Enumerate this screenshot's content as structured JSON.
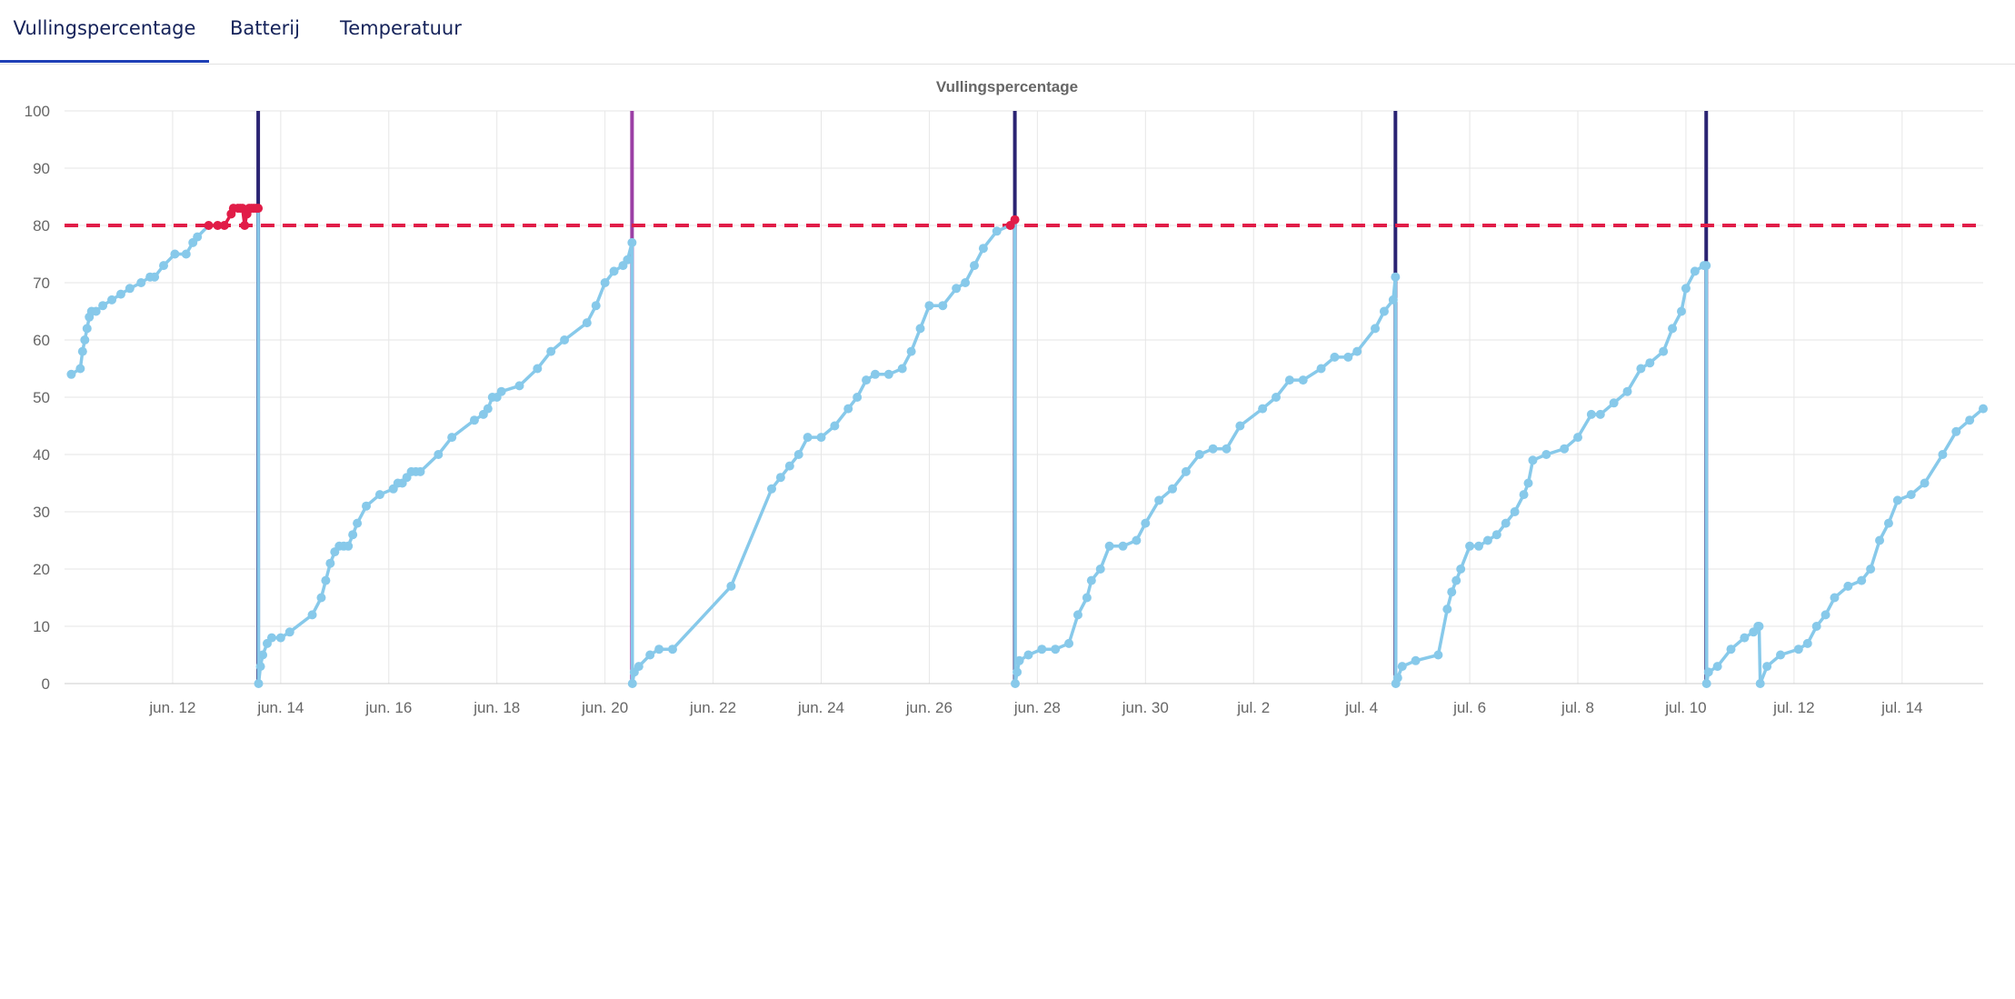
{
  "tabs": [
    {
      "label": "Vullingspercentage",
      "active": true
    },
    {
      "label": "Batterij",
      "active": false
    },
    {
      "label": "Temperatuur",
      "active": false
    }
  ],
  "colors": {
    "tab_text": "#16235a",
    "tab_active_underline": "#1f3fb6",
    "fill_line": "#87c9ea",
    "alert_line": "#e11d48",
    "threshold": "#e11d48",
    "emptying_marker": "#2b2473",
    "emptying_marker_alt": "#9b3fa5",
    "grid": "#e6e6e6",
    "axis_text": "#666666"
  },
  "chart_data": {
    "type": "line",
    "title": "Vullingspercentage",
    "ylim": [
      0,
      100
    ],
    "yticks": [
      0,
      10,
      20,
      30,
      40,
      50,
      60,
      70,
      80,
      90,
      100
    ],
    "xlim": [
      "2023-06-10",
      "2023-07-15T12:00"
    ],
    "xticks": [
      {
        "date": "2023-06-12",
        "label": "jun. 12"
      },
      {
        "date": "2023-06-14",
        "label": "jun. 14"
      },
      {
        "date": "2023-06-16",
        "label": "jun. 16"
      },
      {
        "date": "2023-06-18",
        "label": "jun. 18"
      },
      {
        "date": "2023-06-20",
        "label": "jun. 20"
      },
      {
        "date": "2023-06-22",
        "label": "jun. 22"
      },
      {
        "date": "2023-06-24",
        "label": "jun. 24"
      },
      {
        "date": "2023-06-26",
        "label": "jun. 26"
      },
      {
        "date": "2023-06-28",
        "label": "jun. 28"
      },
      {
        "date": "2023-06-30",
        "label": "jun. 30"
      },
      {
        "date": "2023-07-02",
        "label": "jul. 2"
      },
      {
        "date": "2023-07-04",
        "label": "jul. 4"
      },
      {
        "date": "2023-07-06",
        "label": "jul. 6"
      },
      {
        "date": "2023-07-08",
        "label": "jul. 8"
      },
      {
        "date": "2023-07-10",
        "label": "jul. 10"
      },
      {
        "date": "2023-07-12",
        "label": "jul. 12"
      },
      {
        "date": "2023-07-14",
        "label": "jul. 14"
      }
    ],
    "grid": true,
    "threshold": {
      "value": 80,
      "style": "dashed"
    },
    "emptying_markers": [
      {
        "date": "2023-06-13T14:00",
        "color": "#2b2473"
      },
      {
        "date": "2023-06-20T12:00",
        "color": "#9b3fa5"
      },
      {
        "date": "2023-06-27T14:00",
        "color": "#2b2473"
      },
      {
        "date": "2023-07-04T15:00",
        "color": "#2b2473"
      },
      {
        "date": "2023-07-10T09:00",
        "color": "#2b2473"
      }
    ],
    "series": [
      {
        "name": "",
        "x": [
          "2023-06-10T03:00",
          "2023-06-10T07:00",
          "2023-06-10T08:00",
          "2023-06-10T09:00",
          "2023-06-10T10:00",
          "2023-06-10T11:00",
          "2023-06-10T12:00",
          "2023-06-10T14:00",
          "2023-06-10T17:00",
          "2023-06-10T21:00",
          "2023-06-11T01:00",
          "2023-06-11T05:00",
          "2023-06-11T10:00",
          "2023-06-11T14:00",
          "2023-06-11T16:00",
          "2023-06-11T20:00",
          "2023-06-12T01:00",
          "2023-06-12T06:00",
          "2023-06-12T09:00",
          "2023-06-12T11:00",
          "2023-06-12T16:00",
          "2023-06-12T20:00",
          "2023-06-12T23:00",
          "2023-06-13T02:00",
          "2023-06-13T03:00",
          "2023-06-13T05:00",
          "2023-06-13T06:00",
          "2023-06-13T07:00",
          "2023-06-13T08:00",
          "2023-06-13T09:00",
          "2023-06-13T10:00",
          "2023-06-13T11:00",
          "2023-06-13T12:00",
          "2023-06-13T13:00",
          "2023-06-13T14:00",
          "2023-06-13T14:10",
          "2023-06-13T15:00",
          "2023-06-13T16:00",
          "2023-06-13T18:00",
          "2023-06-13T20:00",
          "2023-06-14T00:00",
          "2023-06-14T04:00",
          "2023-06-14T14:00",
          "2023-06-14T18:00",
          "2023-06-14T20:00",
          "2023-06-14T22:00",
          "2023-06-15T00:00",
          "2023-06-15T02:00",
          "2023-06-15T04:00",
          "2023-06-15T06:00",
          "2023-06-15T08:00",
          "2023-06-15T10:00",
          "2023-06-15T14:00",
          "2023-06-15T20:00",
          "2023-06-16T02:00",
          "2023-06-16T04:00",
          "2023-06-16T06:00",
          "2023-06-16T08:00",
          "2023-06-16T10:00",
          "2023-06-16T12:00",
          "2023-06-16T14:00",
          "2023-06-16T22:00",
          "2023-06-17T04:00",
          "2023-06-17T14:00",
          "2023-06-17T18:00",
          "2023-06-17T20:00",
          "2023-06-17T22:00",
          "2023-06-18T00:00",
          "2023-06-18T02:00",
          "2023-06-18T10:00",
          "2023-06-18T18:00",
          "2023-06-19T00:00",
          "2023-06-19T06:00",
          "2023-06-19T16:00",
          "2023-06-19T20:00",
          "2023-06-20T00:00",
          "2023-06-20T04:00",
          "2023-06-20T08:00",
          "2023-06-20T10:00",
          "2023-06-20T12:00",
          "2023-06-20T12:10",
          "2023-06-20T13:00",
          "2023-06-20T15:00",
          "2023-06-20T20:00",
          "2023-06-21T00:00",
          "2023-06-21T06:00",
          "2023-06-22T08:00",
          "2023-06-23T02:00",
          "2023-06-23T06:00",
          "2023-06-23T10:00",
          "2023-06-23T14:00",
          "2023-06-23T18:00",
          "2023-06-24T00:00",
          "2023-06-24T06:00",
          "2023-06-24T12:00",
          "2023-06-24T16:00",
          "2023-06-24T20:00",
          "2023-06-25T00:00",
          "2023-06-25T06:00",
          "2023-06-25T12:00",
          "2023-06-25T16:00",
          "2023-06-25T20:00",
          "2023-06-26T00:00",
          "2023-06-26T06:00",
          "2023-06-26T12:00",
          "2023-06-26T16:00",
          "2023-06-26T20:00",
          "2023-06-27T00:00",
          "2023-06-27T06:00",
          "2023-06-27T12:00",
          "2023-06-27T14:00",
          "2023-06-27T14:10",
          "2023-06-27T15:00",
          "2023-06-27T16:00",
          "2023-06-27T20:00",
          "2023-06-28T02:00",
          "2023-06-28T08:00",
          "2023-06-28T14:00",
          "2023-06-28T18:00",
          "2023-06-28T22:00",
          "2023-06-29T00:00",
          "2023-06-29T04:00",
          "2023-06-29T08:00",
          "2023-06-29T14:00",
          "2023-06-29T20:00",
          "2023-06-30T00:00",
          "2023-06-30T06:00",
          "2023-06-30T12:00",
          "2023-06-30T18:00",
          "2023-07-01T00:00",
          "2023-07-01T06:00",
          "2023-07-01T12:00",
          "2023-07-01T18:00",
          "2023-07-02T04:00",
          "2023-07-02T10:00",
          "2023-07-02T16:00",
          "2023-07-02T22:00",
          "2023-07-03T06:00",
          "2023-07-03T12:00",
          "2023-07-03T18:00",
          "2023-07-03T22:00",
          "2023-07-04T06:00",
          "2023-07-04T10:00",
          "2023-07-04T14:00",
          "2023-07-04T15:00",
          "2023-07-04T15:10",
          "2023-07-04T16:00",
          "2023-07-04T18:00",
          "2023-07-05T00:00",
          "2023-07-05T10:00",
          "2023-07-05T14:00",
          "2023-07-05T16:00",
          "2023-07-05T18:00",
          "2023-07-05T20:00",
          "2023-07-06T00:00",
          "2023-07-06T04:00",
          "2023-07-06T08:00",
          "2023-07-06T12:00",
          "2023-07-06T16:00",
          "2023-07-06T20:00",
          "2023-07-07T00:00",
          "2023-07-07T02:00",
          "2023-07-07T04:00",
          "2023-07-07T10:00",
          "2023-07-07T18:00",
          "2023-07-08T00:00",
          "2023-07-08T06:00",
          "2023-07-08T10:00",
          "2023-07-08T16:00",
          "2023-07-08T22:00",
          "2023-07-09T04:00",
          "2023-07-09T08:00",
          "2023-07-09T14:00",
          "2023-07-09T18:00",
          "2023-07-09T22:00",
          "2023-07-10T00:00",
          "2023-07-10T04:00",
          "2023-07-10T08:00",
          "2023-07-10T09:00",
          "2023-07-10T09:10",
          "2023-07-10T10:00",
          "2023-07-10T14:00",
          "2023-07-10T20:00",
          "2023-07-11T02:00",
          "2023-07-11T06:00",
          "2023-07-11T08:00",
          "2023-07-11T08:30",
          "2023-07-11T09:00",
          "2023-07-11T12:00",
          "2023-07-11T18:00",
          "2023-07-12T02:00",
          "2023-07-12T06:00",
          "2023-07-12T10:00",
          "2023-07-12T14:00",
          "2023-07-12T18:00",
          "2023-07-13T00:00",
          "2023-07-13T06:00",
          "2023-07-13T10:00",
          "2023-07-13T14:00",
          "2023-07-13T18:00",
          "2023-07-13T22:00",
          "2023-07-14T04:00",
          "2023-07-14T10:00",
          "2023-07-14T18:00",
          "2023-07-15T00:00",
          "2023-07-15T06:00",
          "2023-07-15T12:00"
        ],
        "values": [
          54,
          55,
          58,
          60,
          62,
          64,
          65,
          65,
          66,
          67,
          68,
          69,
          70,
          71,
          71,
          73,
          75,
          75,
          77,
          78,
          80,
          80,
          80,
          82,
          83,
          83,
          83,
          83,
          80,
          82,
          83,
          83,
          83,
          83,
          83,
          0,
          3,
          5,
          7,
          8,
          8,
          9,
          12,
          15,
          18,
          21,
          23,
          24,
          24,
          24,
          26,
          28,
          31,
          33,
          34,
          35,
          35,
          36,
          37,
          37,
          37,
          40,
          43,
          46,
          47,
          48,
          50,
          50,
          51,
          52,
          55,
          58,
          60,
          63,
          66,
          70,
          72,
          73,
          74,
          77,
          0,
          2,
          3,
          5,
          6,
          6,
          17,
          34,
          36,
          38,
          40,
          43,
          43,
          45,
          48,
          50,
          53,
          54,
          54,
          55,
          58,
          62,
          66,
          66,
          69,
          70,
          73,
          76,
          79,
          80,
          81,
          0,
          2,
          4,
          5,
          6,
          6,
          7,
          12,
          15,
          18,
          20,
          24,
          24,
          25,
          28,
          32,
          34,
          37,
          40,
          41,
          41,
          45,
          48,
          50,
          53,
          53,
          55,
          57,
          57,
          58,
          62,
          65,
          67,
          71,
          0,
          1,
          3,
          4,
          5,
          13,
          16,
          18,
          20,
          24,
          24,
          25,
          26,
          28,
          30,
          33,
          35,
          39,
          40,
          41,
          43,
          47,
          47,
          49,
          51,
          55,
          56,
          58,
          62,
          65,
          69,
          72,
          73,
          73,
          0,
          2,
          3,
          6,
          8,
          9,
          10,
          10,
          0,
          3,
          5,
          6,
          7,
          10,
          12,
          15,
          17,
          18,
          20,
          25,
          28,
          32,
          33,
          35,
          40,
          44,
          46,
          48
        ]
      }
    ]
  }
}
